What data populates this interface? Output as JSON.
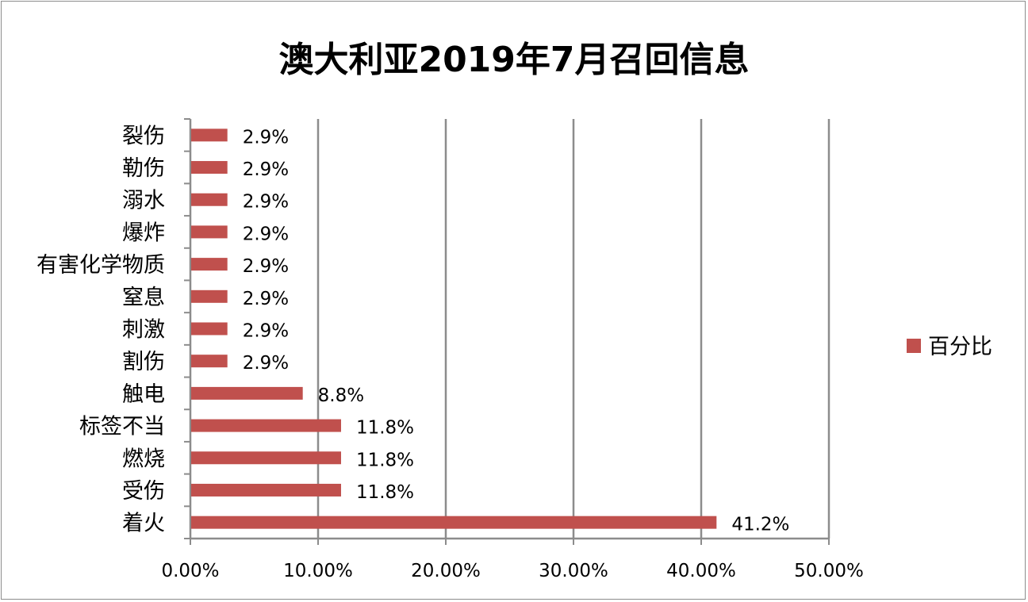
{
  "chart_data": {
    "type": "bar",
    "orientation": "horizontal",
    "title": "澳大利亚2019年7月召回信息",
    "categories": [
      "裂伤",
      "勒伤",
      "溺水",
      "爆炸",
      "有害化学物质",
      "窒息",
      "刺激",
      "割伤",
      "触电",
      "标签不当",
      "燃烧",
      "受伤",
      "着火"
    ],
    "series": [
      {
        "name": "百分比",
        "color": "#c0504d",
        "values": [
          2.9,
          2.9,
          2.9,
          2.9,
          2.9,
          2.9,
          2.9,
          2.9,
          8.8,
          11.8,
          11.8,
          11.8,
          41.2
        ],
        "data_labels": [
          "2.9%",
          "2.9%",
          "2.9%",
          "2.9%",
          "2.9%",
          "2.9%",
          "2.9%",
          "2.9%",
          "8.8%",
          "11.8%",
          "11.8%",
          "11.8%",
          "41.2%"
        ]
      }
    ],
    "xlim": [
      0,
      50
    ],
    "x_ticks": [
      0,
      10,
      20,
      30,
      40,
      50
    ],
    "x_tick_labels": [
      "0.00%",
      "10.00%",
      "20.00%",
      "30.00%",
      "40.00%",
      "50.00%"
    ],
    "xlabel": "",
    "ylabel": "",
    "grid": "vertical major gridlines",
    "gridline_color": "#8c8c8c",
    "legend": {
      "position": "right",
      "entries": [
        "百分比"
      ]
    }
  }
}
